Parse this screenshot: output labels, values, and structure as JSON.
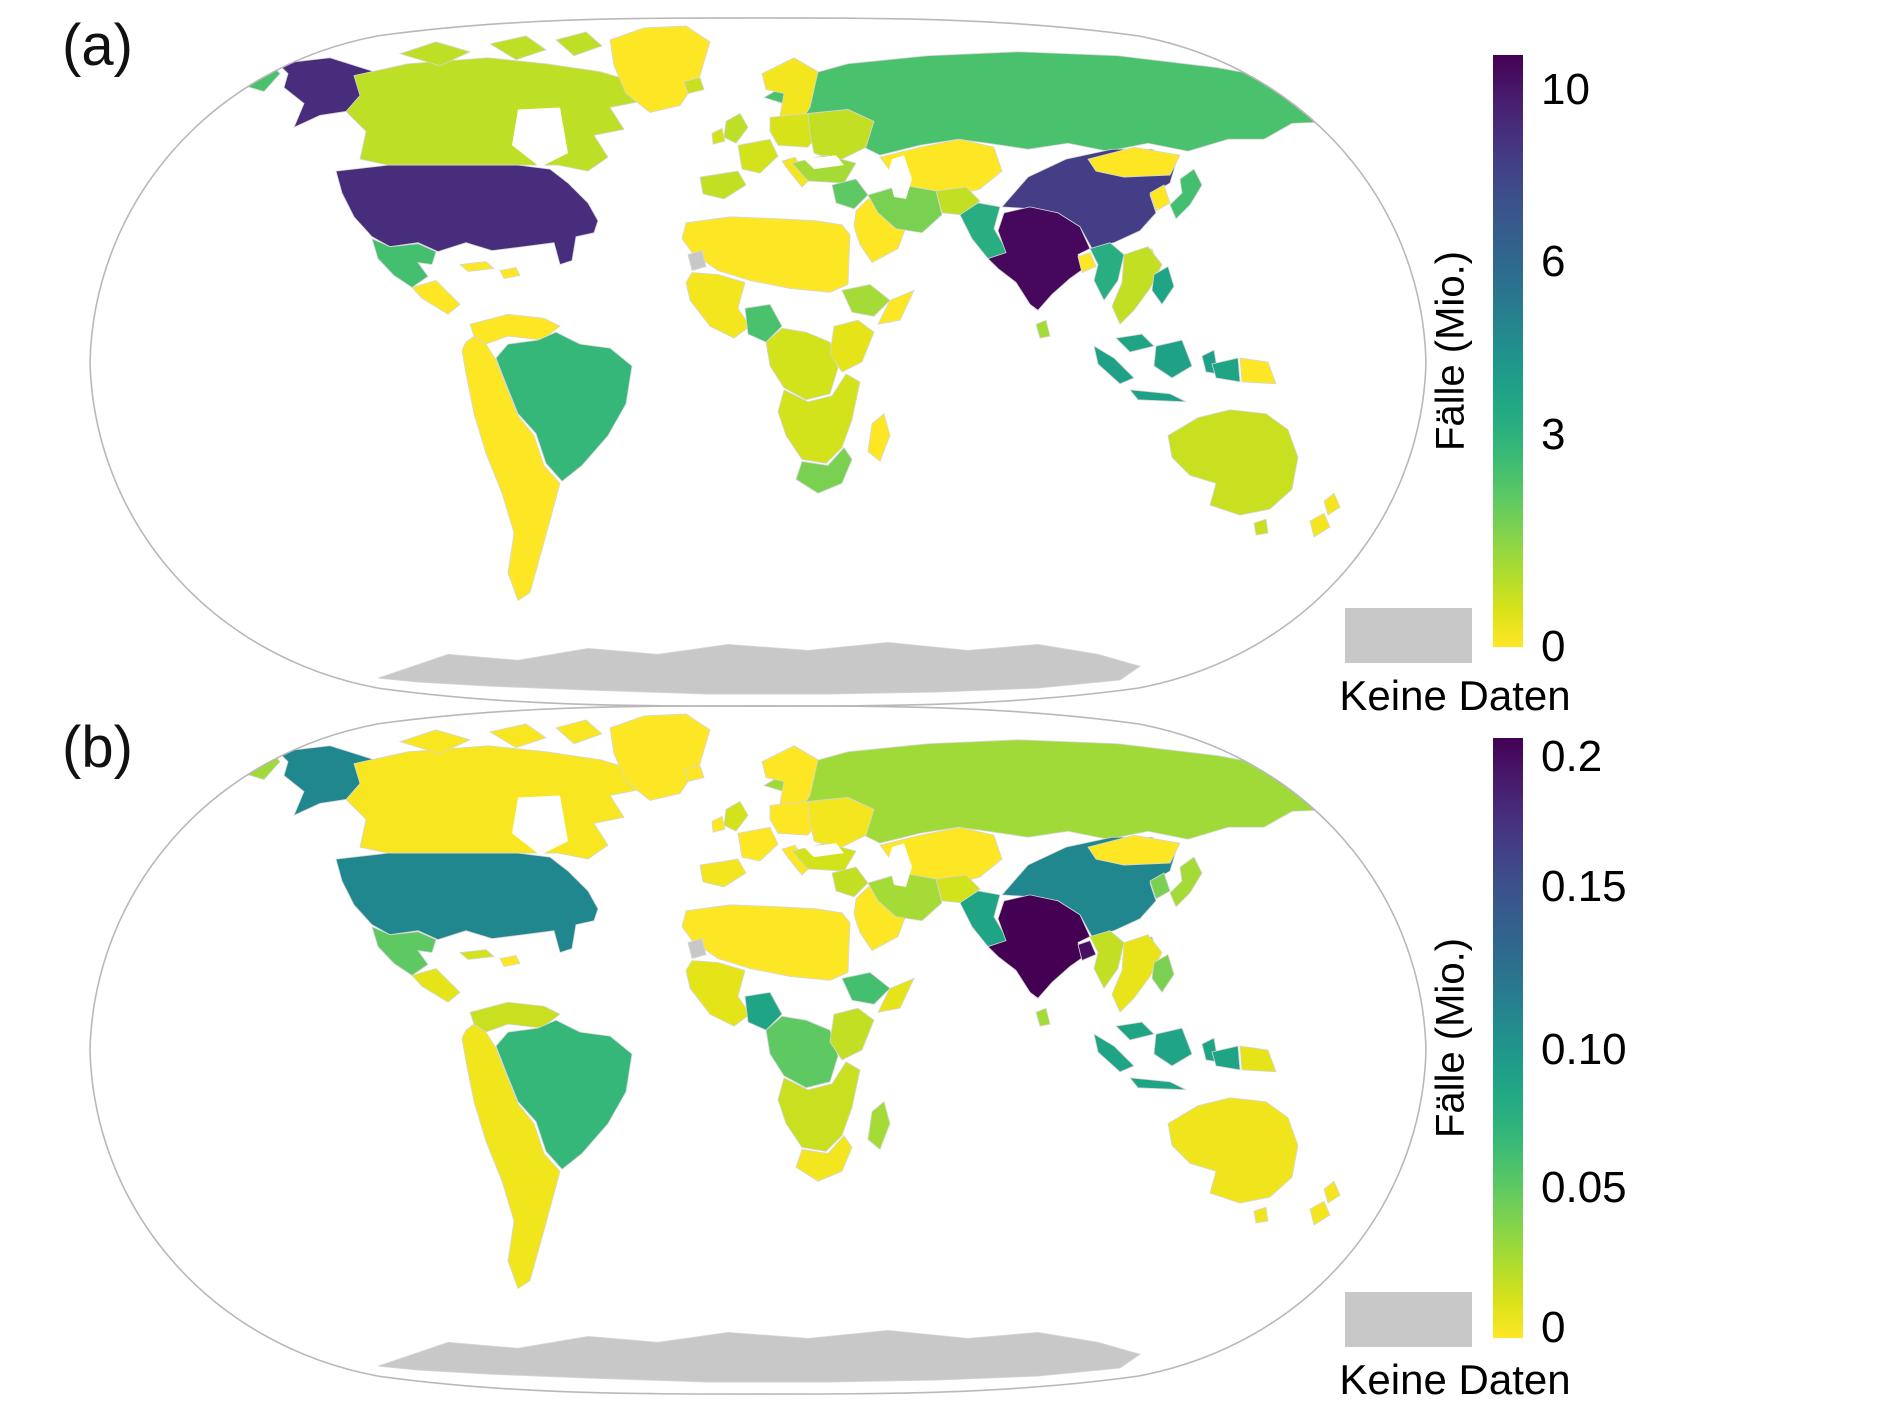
{
  "figure": {
    "background": "#ffffff"
  },
  "panels": [
    {
      "id": "a",
      "label": "(a)",
      "legend": {
        "title": "Fälle (Mio.)",
        "ticks": [
          {
            "label": "10",
            "pos": 0.059
          },
          {
            "label": "6",
            "pos": 0.35
          },
          {
            "label": "3",
            "pos": 0.642
          },
          {
            "label": "0",
            "pos": 1.0
          }
        ],
        "no_data_label": "Keine Daten",
        "no_data_color": "#c8c8c8"
      }
    },
    {
      "id": "b",
      "label": "(b)",
      "legend": {
        "title": "Fälle (Mio.)",
        "ticks": [
          {
            "label": "0.2",
            "pos": 0.032
          },
          {
            "label": "0.15",
            "pos": 0.248
          },
          {
            "label": "0.10",
            "pos": 0.52
          },
          {
            "label": "0.05",
            "pos": 0.75
          },
          {
            "label": "0",
            "pos": 0.983
          }
        ],
        "no_data_label": "Keine Daten",
        "no_data_color": "#c8c8c8"
      }
    }
  ],
  "colorbar_gradient": [
    "#440154",
    "#48186a",
    "#472d7b",
    "#424086",
    "#3b528b",
    "#33608d",
    "#2c6e8e",
    "#277f8e",
    "#21918c",
    "#1fa187",
    "#28ae80",
    "#3fbc73",
    "#5ec962",
    "#84d44b",
    "#addc30",
    "#d8e219",
    "#fde725"
  ],
  "map": {
    "outline_color": "#b8b8b8",
    "border_color": "#d6d6d6",
    "ocean": "#ffffff",
    "regions": [
      {
        "id": "russia",
        "name": "Russia",
        "a": "#4ac16d",
        "b": "#a0da39"
      },
      {
        "id": "chukotka",
        "name": "NE Russia (edge wrap)",
        "a": "#4ac16d",
        "b": "#a0da39"
      },
      {
        "id": "alaska",
        "name": "Alaska (USA)",
        "a": "#472d7b",
        "b": "#1f878d"
      },
      {
        "id": "canada",
        "name": "Canada",
        "a": "#bddf26",
        "b": "#f8e621"
      },
      {
        "id": "greenland",
        "name": "Greenland",
        "a": "#fde725",
        "b": "#fde725"
      },
      {
        "id": "iceland",
        "name": "Iceland",
        "a": "#c8e020",
        "b": "#fde725"
      },
      {
        "id": "usa",
        "name": "United States",
        "a": "#472d7b",
        "b": "#1f878d"
      },
      {
        "id": "mexico",
        "name": "Mexico",
        "a": "#44bf70",
        "b": "#5ec962"
      },
      {
        "id": "centam",
        "name": "Central America",
        "a": "#fde725",
        "b": "#e5e419"
      },
      {
        "id": "cuba",
        "name": "Cuba",
        "a": "#fde725",
        "b": "#d2e21b"
      },
      {
        "id": "hispaniola",
        "name": "Hispaniola",
        "a": "#fde725",
        "b": "#fde725"
      },
      {
        "id": "colven",
        "name": "Colombia & Venezuela",
        "a": "#fde725",
        "b": "#c8e020"
      },
      {
        "id": "sawest",
        "name": "Western & Southern South America",
        "a": "#fde725",
        "b": "#f1e51c"
      },
      {
        "id": "brazil",
        "name": "Brazil",
        "a": "#35b779",
        "b": "#35b779"
      },
      {
        "id": "scandinavia",
        "name": "Scandinavia",
        "a": "#f4e61e",
        "b": "#fde725"
      },
      {
        "id": "uk",
        "name": "United Kingdom",
        "a": "#bddf26",
        "b": "#d2e21b"
      },
      {
        "id": "ireland",
        "name": "Ireland",
        "a": "#d2e21b",
        "b": "#fde725"
      },
      {
        "id": "france",
        "name": "France",
        "a": "#d2e21b",
        "b": "#fde725"
      },
      {
        "id": "iberia",
        "name": "Iberia",
        "a": "#c2df23",
        "b": "#f4e61e"
      },
      {
        "id": "ceurope",
        "name": "Central Europe",
        "a": "#d8e219",
        "b": "#fde725"
      },
      {
        "id": "eeurope",
        "name": "Eastern Europe",
        "a": "#c2df23",
        "b": "#f4e61e"
      },
      {
        "id": "italy",
        "name": "Italy",
        "a": "#f4e61e",
        "b": "#fde725"
      },
      {
        "id": "kazakh",
        "name": "Central Asia",
        "a": "#fde725",
        "b": "#fde725"
      },
      {
        "id": "turkey",
        "name": "Turkey",
        "a": "#a5db36",
        "b": "#d2e21b"
      },
      {
        "id": "iraq",
        "name": "Iraq",
        "a": "#5ec962",
        "b": "#c2df23"
      },
      {
        "id": "saudi",
        "name": "Arabian Peninsula",
        "a": "#fde725",
        "b": "#fde725"
      },
      {
        "id": "iran",
        "name": "Iran",
        "a": "#7ad151",
        "b": "#a5db36"
      },
      {
        "id": "afghan",
        "name": "Afghanistan",
        "a": "#c2df23",
        "b": "#d2e21b"
      },
      {
        "id": "china",
        "name": "China",
        "a": "#433e85",
        "b": "#1f878d"
      },
      {
        "id": "pakistan",
        "name": "Pakistan",
        "a": "#28ae80",
        "b": "#20a486"
      },
      {
        "id": "india",
        "name": "India",
        "a": "#46085c",
        "b": "#440154"
      },
      {
        "id": "bangladesh",
        "name": "Bangladesh",
        "a": "#fde725",
        "b": "#471063"
      },
      {
        "id": "srilanka",
        "name": "Sri Lanka",
        "a": "#a5db36",
        "b": "#a5db36"
      },
      {
        "id": "mongolia",
        "name": "Mongolia",
        "a": "#fde725",
        "b": "#fde725"
      },
      {
        "id": "korea",
        "name": "Korea",
        "a": "#fde725",
        "b": "#7ad151"
      },
      {
        "id": "japan",
        "name": "Japan",
        "a": "#44bf70",
        "b": "#a5db36"
      },
      {
        "id": "taiwan",
        "name": "Taiwan",
        "a": "#fde725",
        "b": "#7ad151"
      },
      {
        "id": "myanmar",
        "name": "Myanmar",
        "a": "#28ae80",
        "b": "#c2df23"
      },
      {
        "id": "thaiviet",
        "name": "Thailand & Indochina",
        "a": "#c2df23",
        "b": "#e8e419"
      },
      {
        "id": "malaysia",
        "name": "Malaysia",
        "a": "#20a486",
        "b": "#20a486"
      },
      {
        "id": "indonesia",
        "name": "Indonesia",
        "a": "#1fa187",
        "b": "#20a486"
      },
      {
        "id": "philippines",
        "name": "Philippines",
        "a": "#20a486",
        "b": "#7ad151"
      },
      {
        "id": "pngw",
        "name": "Papua (west)",
        "a": "#20a486",
        "b": "#20a486"
      },
      {
        "id": "pnge",
        "name": "Papua New Guinea",
        "a": "#fde725",
        "b": "#e5e419"
      },
      {
        "id": "australia",
        "name": "Australia",
        "a": "#c8e020",
        "b": "#f0e51d"
      },
      {
        "id": "nz",
        "name": "New Zealand",
        "a": "#f4e61e",
        "b": "#f4e61e"
      },
      {
        "id": "afnorth",
        "name": "North Africa",
        "a": "#fde725",
        "b": "#fde725"
      },
      {
        "id": "wsahara",
        "name": "Western Sahara (no data)",
        "a": "#c8c8c8",
        "b": "#c8c8c8"
      },
      {
        "id": "afwest",
        "name": "West Africa",
        "a": "#f4e61e",
        "b": "#e5e419"
      },
      {
        "id": "nigeria",
        "name": "Nigeria",
        "a": "#4ac16d",
        "b": "#20a486"
      },
      {
        "id": "afcentral",
        "name": "Central Africa",
        "a": "#d2e21b",
        "b": "#5ec962"
      },
      {
        "id": "ethiopia",
        "name": "Ethiopia",
        "a": "#a5db36",
        "b": "#44bf70"
      },
      {
        "id": "somalia",
        "name": "Horn of Africa",
        "a": "#fde725",
        "b": "#e5e419"
      },
      {
        "id": "afeast",
        "name": "East Africa",
        "a": "#e5e419",
        "b": "#c2df23"
      },
      {
        "id": "afsouth",
        "name": "Southern Africa",
        "a": "#d2e21b",
        "b": "#c8e020"
      },
      {
        "id": "southafrica",
        "name": "South Africa",
        "a": "#7ad151",
        "b": "#f4e61e"
      },
      {
        "id": "madagascar",
        "name": "Madagascar",
        "a": "#fde725",
        "b": "#a5db36"
      },
      {
        "id": "antarctica",
        "name": "Antarctica (no data)",
        "a": "#c8c8c8",
        "b": "#c8c8c8"
      }
    ]
  }
}
